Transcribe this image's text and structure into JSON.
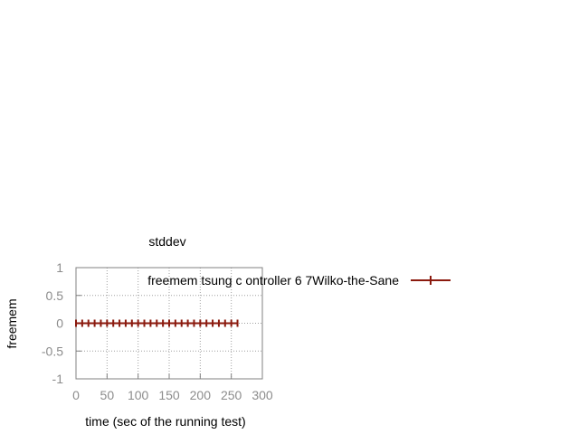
{
  "chart_data": {
    "type": "line",
    "title": "stddev",
    "xlabel": "time (sec of the running test)",
    "ylabel": "freemem",
    "xlim": [
      0,
      300
    ],
    "ylim": [
      -1,
      1
    ],
    "xticks": [
      "0",
      "50",
      "100",
      "150",
      "200",
      "250",
      "300"
    ],
    "yticks": [
      "1",
      "0.5",
      "0",
      "-0.5",
      "-1"
    ],
    "grid": true,
    "legend_position": "top-right",
    "series": [
      {
        "name": "freemem tsung_controller@Wilko-the-Sane",
        "legend_text": "freemem tsung c ontroller 6 7Wilko-the-Sane",
        "color": "#8b1a0e",
        "x": [
          0,
          10,
          20,
          30,
          40,
          50,
          60,
          70,
          80,
          90,
          100,
          110,
          120,
          130,
          140,
          150,
          160,
          170,
          180,
          190,
          200,
          210,
          220,
          230,
          240,
          250,
          260
        ],
        "y": [
          0,
          0,
          0,
          0,
          0,
          0,
          0,
          0,
          0,
          0,
          0,
          0,
          0,
          0,
          0,
          0,
          0,
          0,
          0,
          0,
          0,
          0,
          0,
          0,
          0,
          0,
          0
        ]
      }
    ]
  }
}
